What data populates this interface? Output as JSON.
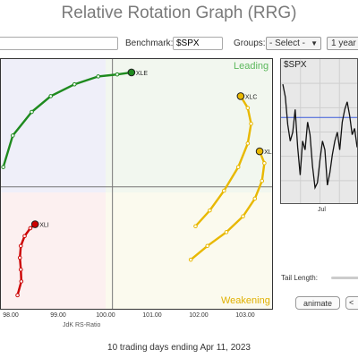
{
  "title": "Relative Rotation Graph (RRG)",
  "toolbar": {
    "symbols_value": "",
    "benchmark_label": "Benchmark:",
    "benchmark_value": "$SPX",
    "groups_label": "Groups:",
    "groups_value": "- Select -",
    "period_value": "1 year"
  },
  "quadrants": {
    "leading": "Leading",
    "weakening": "Weakening"
  },
  "x_axis": {
    "ticks": [
      "98.00",
      "99.00",
      "100.00",
      "101.00",
      "102.00",
      "103.00"
    ],
    "label": "JdK RS-Ratio"
  },
  "footer": "10 trading days ending Apr 11, 2023",
  "benchmark_panel": {
    "symbol": "$SPX",
    "month_label": "Jul",
    "trend_line": [
      0.1,
      0.2,
      0.42,
      0.55,
      0.48,
      0.3,
      0.6,
      0.82,
      0.55,
      0.62,
      0.4,
      0.5,
      0.75,
      0.92,
      0.88,
      0.7,
      0.55,
      0.62,
      0.9,
      0.8,
      0.66,
      0.55,
      0.48,
      0.62,
      0.4,
      0.3,
      0.24,
      0.35,
      0.5,
      0.45,
      0.6
    ]
  },
  "controls": {
    "tail_length_label": "Tail Length:",
    "animate_label": "animate",
    "extra_label": "<"
  },
  "chart_data": {
    "type": "scatter",
    "xlabel": "JdK RS-Ratio",
    "ylabel": "",
    "center": [
      100.0,
      100.0
    ],
    "xlim": [
      97.65,
      103.4
    ],
    "ylim": [
      96.86,
      103.24
    ],
    "series": [
      {
        "name": "XLE",
        "color": "#1e8a1e",
        "x": [
          97.7,
          97.9,
          98.3,
          98.7,
          99.2,
          99.7,
          100.1,
          100.4
        ],
        "y": [
          100.5,
          101.3,
          101.9,
          102.3,
          102.6,
          102.8,
          102.85,
          102.9
        ]
      },
      {
        "name": "XLI",
        "color": "#cc0000",
        "x": [
          98.0,
          98.08,
          98.07,
          98.05,
          98.07,
          98.15,
          98.27,
          98.37
        ],
        "y": [
          97.25,
          97.6,
          97.9,
          98.2,
          98.5,
          98.75,
          98.95,
          99.05
        ]
      },
      {
        "name": "XLC",
        "color": "#e8b800",
        "x": [
          101.75,
          102.05,
          102.35,
          102.65,
          102.85,
          102.92,
          102.85,
          102.7
        ],
        "y": [
          99.0,
          99.4,
          99.9,
          100.5,
          101.1,
          101.6,
          102.0,
          102.3
        ]
      },
      {
        "name": "XLK",
        "color": "#e8b800",
        "x": [
          101.65,
          102.0,
          102.4,
          102.75,
          103.0,
          103.15,
          103.2,
          103.1
        ],
        "y": [
          98.15,
          98.5,
          98.85,
          99.25,
          99.7,
          100.15,
          100.6,
          100.9
        ]
      }
    ]
  }
}
